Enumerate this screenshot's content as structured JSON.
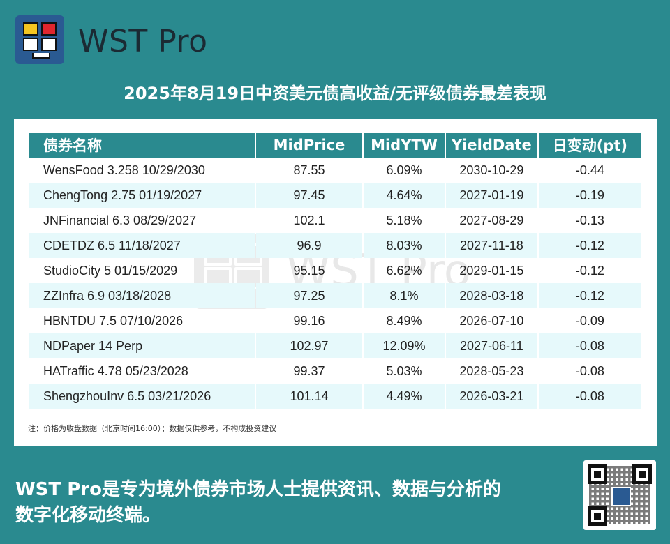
{
  "brand": {
    "name": "WST Pro"
  },
  "title": "2025年8月19日中资美元债高收益/无评级债券最差表现",
  "table": {
    "headers": [
      "债券名称",
      "MidPrice",
      "MidYTW",
      "YieldDate",
      "日变动(pt)"
    ],
    "rows": [
      [
        "WensFood 3.258 10/29/2030",
        "87.55",
        "6.09%",
        "2030-10-29",
        "-0.44"
      ],
      [
        "ChengTong 2.75 01/19/2027",
        "97.45",
        "4.64%",
        "2027-01-19",
        "-0.19"
      ],
      [
        "JNFinancial 6.3 08/29/2027",
        "102.1",
        "5.18%",
        "2027-08-29",
        "-0.13"
      ],
      [
        "CDETDZ 6.5 11/18/2027",
        "96.9",
        "8.03%",
        "2027-11-18",
        "-0.12"
      ],
      [
        "StudioCity 5 01/15/2029",
        "95.15",
        "6.62%",
        "2029-01-15",
        "-0.12"
      ],
      [
        "ZZInfra 6.9 03/18/2028",
        "97.25",
        "8.1%",
        "2028-03-18",
        "-0.12"
      ],
      [
        "HBNTDU 7.5 07/10/2026",
        "99.16",
        "8.49%",
        "2026-07-10",
        "-0.09"
      ],
      [
        "NDPaper 14 Perp",
        "102.97",
        "12.09%",
        "2027-06-11",
        "-0.08"
      ],
      [
        "HATraffic 4.78 05/23/2028",
        "99.37",
        "5.03%",
        "2028-05-23",
        "-0.08"
      ],
      [
        "ShengzhouInv 6.5 03/21/2026",
        "101.14",
        "4.49%",
        "2026-03-21",
        "-0.08"
      ]
    ]
  },
  "note": "注：价格为收盘数据（北京时间16:00）；数据仅供参考，不构成投资建议",
  "watermark": "WST Pro",
  "footer": {
    "line1": "WST Pro是专为境外债券市场人士提供资讯、数据与分析的",
    "line2": "数字化移动终端。"
  },
  "colors": {
    "background": "#2a8a8f",
    "header": "#2a8a8f",
    "row_alt": "#e6f9fb",
    "logo_bg": "#2a5a92"
  },
  "icons": {
    "logo": "wst-logo-icon",
    "qr": "qr-code-icon"
  }
}
